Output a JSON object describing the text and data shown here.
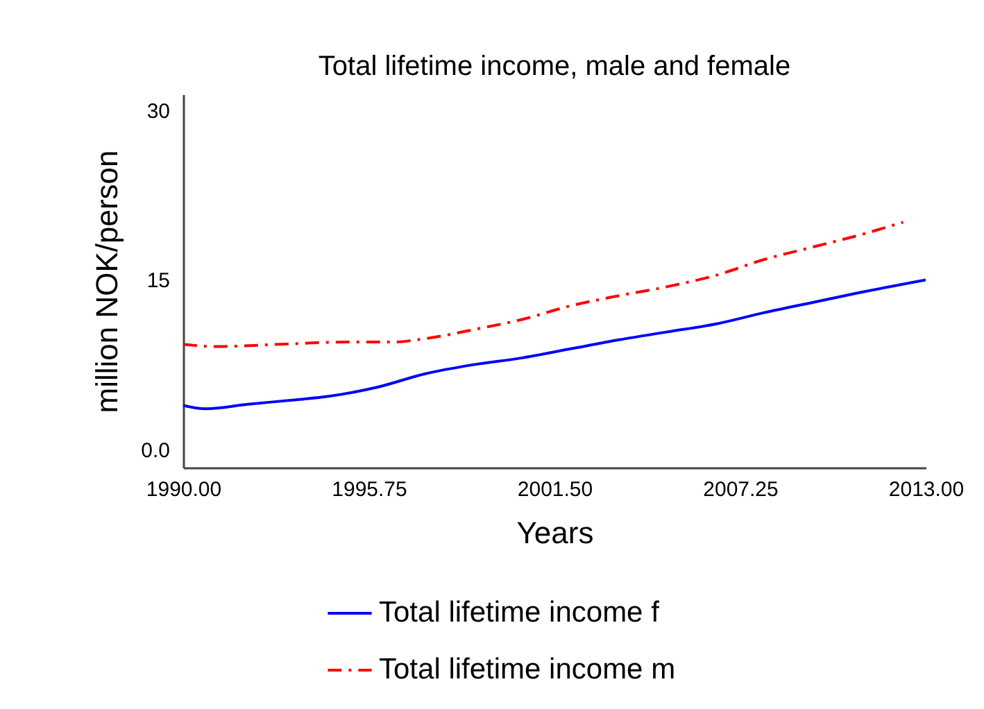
{
  "chart_data": {
    "type": "line",
    "title": "Total lifetime income, male and female",
    "xlabel": "Years",
    "ylabel": "million NOK/person",
    "xlim": [
      1990,
      2013
    ],
    "xticks": [
      {
        "value": 1990,
        "label": "1990.00"
      },
      {
        "value": 1995.75,
        "label": "1995.75"
      },
      {
        "value": 2001.5,
        "label": "2001.50"
      },
      {
        "value": 2007.25,
        "label": "2007.25"
      },
      {
        "value": 2013,
        "label": "2013.00"
      }
    ],
    "ylim": [
      -1.6,
      31.4
    ],
    "yticks": [
      {
        "value": 0,
        "label": "0.0"
      },
      15,
      30
    ],
    "grid": false,
    "legend": "bottom",
    "marker": "none",
    "series": [
      {
        "name": "Total lifetime income f",
        "color": "#0000ff",
        "line_style": "solid",
        "x": [
          1990,
          1990.7,
          1992,
          1993.5,
          1994.5,
          1996,
          1997.5,
          1999,
          2000.5,
          2002,
          2003.5,
          2005,
          2006.5,
          2008,
          2009.5,
          2011,
          2013
        ],
        "values": [
          3.9,
          3.6,
          4.0,
          4.4,
          4.7,
          5.5,
          6.7,
          7.5,
          8.1,
          8.9,
          9.7,
          10.4,
          11.1,
          12.1,
          13.0,
          13.9,
          15.0
        ]
      },
      {
        "name": "Total lifetime income m",
        "color": "#ff0000",
        "line_style": "dashdot",
        "x": [
          1990,
          1991,
          1993,
          1995,
          1996.5,
          1997.5,
          1999,
          2000.5,
          2002,
          2003.5,
          2005,
          2006.5,
          2008,
          2009.5,
          2011,
          2012.3
        ],
        "values": [
          9.3,
          9.1,
          9.3,
          9.5,
          9.5,
          9.8,
          10.6,
          11.5,
          12.7,
          13.6,
          14.4,
          15.4,
          16.8,
          17.9,
          19.0,
          20.1
        ]
      }
    ]
  }
}
